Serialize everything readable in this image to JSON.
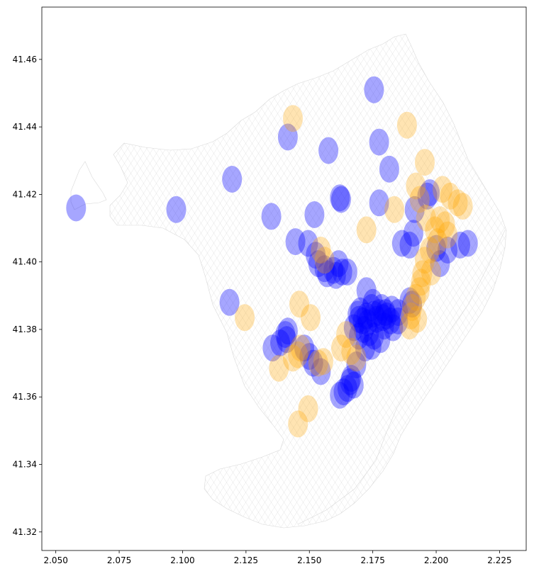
{
  "chart_data": {
    "type": "scatter",
    "title": "",
    "xlabel": "",
    "ylabel": "",
    "xlim": [
      2.0445,
      2.2355
    ],
    "ylim": [
      41.3145,
      41.4755
    ],
    "x_ticks": [
      2.05,
      2.075,
      2.1,
      2.125,
      2.15,
      2.175,
      2.2,
      2.225
    ],
    "x_tick_labels": [
      "2.050",
      "2.075",
      "2.100",
      "2.125",
      "2.150",
      "2.175",
      "2.200",
      "2.225"
    ],
    "y_ticks": [
      41.32,
      41.34,
      41.36,
      41.38,
      41.4,
      41.42,
      41.44,
      41.46
    ],
    "y_tick_labels": [
      "41.32",
      "41.34",
      "41.36",
      "41.38",
      "41.40",
      "41.42",
      "41.44",
      "41.46"
    ],
    "grid": false,
    "background": "street map of Barcelona",
    "series": [
      {
        "color": "#0000ff",
        "opacity": 0.35,
        "points": [
          [
            2.058,
            41.416
          ],
          [
            2.0975,
            41.4155
          ],
          [
            2.1195,
            41.4245
          ],
          [
            2.1755,
            41.451
          ],
          [
            2.1415,
            41.437
          ],
          [
            2.1575,
            41.433
          ],
          [
            2.1775,
            41.4355
          ],
          [
            2.1815,
            41.4275
          ],
          [
            2.162,
            41.419
          ],
          [
            2.1625,
            41.4185
          ],
          [
            2.135,
            41.4135
          ],
          [
            2.152,
            41.414
          ],
          [
            2.1775,
            41.4175
          ],
          [
            2.1975,
            41.4205
          ],
          [
            2.1965,
            41.4195
          ],
          [
            2.1915,
            41.4155
          ],
          [
            2.191,
            41.4085
          ],
          [
            2.1895,
            41.405
          ],
          [
            2.1865,
            41.4055
          ],
          [
            2.2,
            41.404
          ],
          [
            2.2045,
            41.4035
          ],
          [
            2.2095,
            41.405
          ],
          [
            2.2125,
            41.4055
          ],
          [
            2.2015,
            41.3995
          ],
          [
            2.1445,
            41.406
          ],
          [
            2.1495,
            41.4055
          ],
          [
            2.1525,
            41.402
          ],
          [
            2.1535,
            41.3995
          ],
          [
            2.156,
            41.398
          ],
          [
            2.157,
            41.3965
          ],
          [
            2.1595,
            41.3975
          ],
          [
            2.1605,
            41.396
          ],
          [
            2.163,
            41.397
          ],
          [
            2.165,
            41.397
          ],
          [
            2.1615,
            41.3995
          ],
          [
            2.1185,
            41.388
          ],
          [
            2.1725,
            41.3915
          ],
          [
            2.175,
            41.388
          ],
          [
            2.1785,
            41.3865
          ],
          [
            2.18,
            41.385
          ],
          [
            2.1825,
            41.386
          ],
          [
            2.185,
            41.385
          ],
          [
            2.1895,
            41.3885
          ],
          [
            2.1905,
            41.3875
          ],
          [
            2.169,
            41.3845
          ],
          [
            2.1695,
            41.383
          ],
          [
            2.17,
            41.3855
          ],
          [
            2.171,
            41.3825
          ],
          [
            2.1725,
            41.384
          ],
          [
            2.173,
            41.382
          ],
          [
            2.1745,
            41.3865
          ],
          [
            2.1755,
            41.3845
          ],
          [
            2.1765,
            41.383
          ],
          [
            2.1775,
            41.385
          ],
          [
            2.179,
            41.3835
          ],
          [
            2.1795,
            41.381
          ],
          [
            2.1805,
            41.384
          ],
          [
            2.182,
            41.3825
          ],
          [
            2.183,
            41.3805
          ],
          [
            2.1715,
            41.38
          ],
          [
            2.1735,
            41.379
          ],
          [
            2.1755,
            41.378
          ],
          [
            2.178,
            41.377
          ],
          [
            2.185,
            41.3825
          ],
          [
            2.1675,
            41.3805
          ],
          [
            2.1695,
            41.378
          ],
          [
            2.1405,
            41.3785
          ],
          [
            2.141,
            41.377
          ],
          [
            2.1415,
            41.3795
          ],
          [
            2.1385,
            41.376
          ],
          [
            2.1355,
            41.3745
          ],
          [
            2.148,
            41.3745
          ],
          [
            2.15,
            41.372
          ],
          [
            2.1515,
            41.37
          ],
          [
            2.1545,
            41.3675
          ],
          [
            2.1685,
            41.3695
          ],
          [
            2.172,
            41.3745
          ],
          [
            2.1745,
            41.375
          ],
          [
            2.166,
            41.3645
          ],
          [
            2.1675,
            41.3635
          ],
          [
            2.165,
            41.3625
          ],
          [
            2.1635,
            41.3615
          ],
          [
            2.162,
            41.3605
          ],
          [
            2.1665,
            41.3655
          ]
        ]
      },
      {
        "color": "#ffa500",
        "opacity": 0.3,
        "points": [
          [
            2.1435,
            41.4425
          ],
          [
            2.1885,
            41.4405
          ],
          [
            2.1955,
            41.4295
          ],
          [
            2.192,
            41.4225
          ],
          [
            2.1935,
            41.4185
          ],
          [
            2.2025,
            41.4215
          ],
          [
            2.2055,
            41.4195
          ],
          [
            2.2085,
            41.4175
          ],
          [
            2.2105,
            41.4165
          ],
          [
            2.1835,
            41.4155
          ],
          [
            2.1725,
            41.4095
          ],
          [
            2.196,
            41.413
          ],
          [
            2.2015,
            41.4125
          ],
          [
            2.2035,
            41.411
          ],
          [
            2.1995,
            41.4095
          ],
          [
            2.2045,
            41.408
          ],
          [
            2.2005,
            41.406
          ],
          [
            2.1975,
            41.4035
          ],
          [
            2.1955,
            41.4005
          ],
          [
            2.198,
            41.397
          ],
          [
            2.1945,
            41.3965
          ],
          [
            2.194,
            41.394
          ],
          [
            2.1935,
            41.3915
          ],
          [
            2.192,
            41.3895
          ],
          [
            2.1905,
            41.3865
          ],
          [
            2.19,
            41.384
          ],
          [
            2.1925,
            41.383
          ],
          [
            2.1895,
            41.381
          ],
          [
            2.1545,
            41.4035
          ],
          [
            2.156,
            41.4005
          ],
          [
            2.146,
            41.3875
          ],
          [
            2.1505,
            41.3835
          ],
          [
            2.1245,
            41.3835
          ],
          [
            2.1645,
            41.3785
          ],
          [
            2.1625,
            41.3745
          ],
          [
            2.1665,
            41.3735
          ],
          [
            2.1685,
            41.3715
          ],
          [
            2.1535,
            41.37
          ],
          [
            2.1555,
            41.3705
          ],
          [
            2.1435,
            41.3715
          ],
          [
            2.1455,
            41.3725
          ],
          [
            2.1465,
            41.3745
          ],
          [
            2.138,
            41.3685
          ],
          [
            2.1495,
            41.3565
          ],
          [
            2.1455,
            41.352
          ]
        ]
      }
    ]
  }
}
